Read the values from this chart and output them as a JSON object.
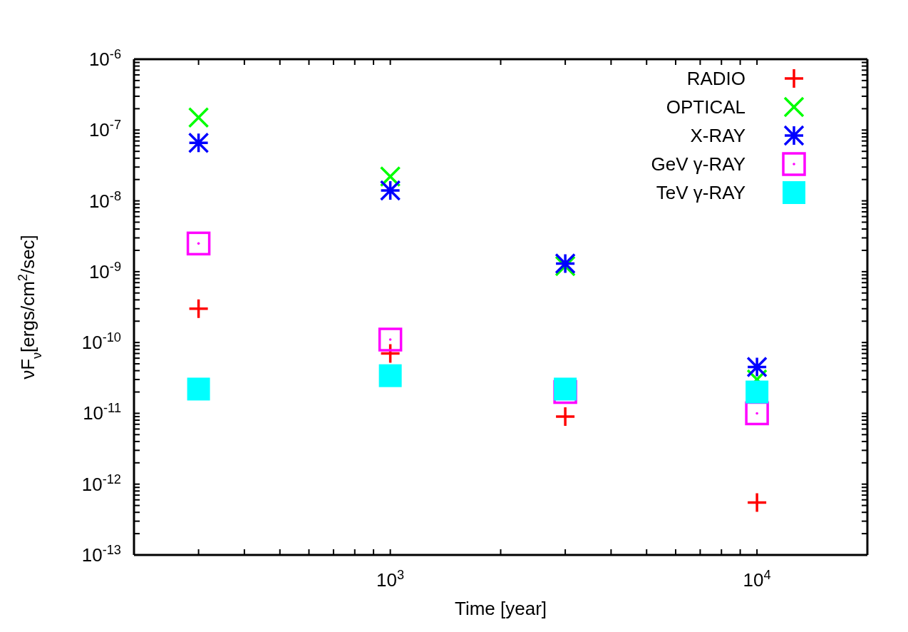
{
  "chart_data": {
    "type": "scatter",
    "xlabel": "Time [year]",
    "ylabel": "νF$_{ν}$[ergs/cm$^{2}$/sec]",
    "x": [
      300,
      1000,
      3000,
      10000
    ],
    "series": [
      {
        "name": "RADIO",
        "color": "#ff0000",
        "values": [
          3e-10,
          7e-11,
          9e-12,
          5.5e-13
        ]
      },
      {
        "name": "OPTICAL",
        "color": "#00ff00",
        "values": [
          1.5e-07,
          2.2e-08,
          1.2e-09,
          3e-11
        ]
      },
      {
        "name": "X-RAY",
        "color": "#0000ff",
        "values": [
          6.6e-08,
          1.4e-08,
          1.3e-09,
          4.5e-11
        ]
      },
      {
        "name": "GeV γ-RAY",
        "color": "#ff00ff",
        "values": [
          2.5e-09,
          1.1e-10,
          2e-11,
          1e-11
        ]
      },
      {
        "name": "TeV γ-RAY",
        "color": "#00ffff",
        "values": [
          2.2e-11,
          3.4e-11,
          2.2e-11,
          2e-11
        ]
      }
    ],
    "log": "xy",
    "xlim": [
      200,
      20000
    ],
    "ylim": [
      1e-13,
      1e-06
    ],
    "xticks": [
      {
        "value": 200,
        "label": null
      },
      {
        "value": 300,
        "label": null
      },
      {
        "value": 400,
        "label": null
      },
      {
        "value": 500,
        "label": null
      },
      {
        "value": 600,
        "label": null
      },
      {
        "value": 700,
        "label": null
      },
      {
        "value": 800,
        "label": null
      },
      {
        "value": 900,
        "label": null
      },
      {
        "value": 1000,
        "label": "10$^{3}$"
      },
      {
        "value": 2000,
        "label": null
      },
      {
        "value": 3000,
        "label": null
      },
      {
        "value": 4000,
        "label": null
      },
      {
        "value": 5000,
        "label": null
      },
      {
        "value": 6000,
        "label": null
      },
      {
        "value": 7000,
        "label": null
      },
      {
        "value": 8000,
        "label": null
      },
      {
        "value": 9000,
        "label": null
      },
      {
        "value": 10000,
        "label": "10$^{4}$"
      },
      {
        "value": 20000,
        "label": null
      }
    ],
    "yticks": [
      {
        "value": 1e-13,
        "label": "10$^{-13}$"
      },
      {
        "value": 2e-13,
        "label": null
      },
      {
        "value": 3e-13,
        "label": null
      },
      {
        "value": 4e-13,
        "label": null
      },
      {
        "value": 5e-13,
        "label": null
      },
      {
        "value": 6e-13,
        "label": null
      },
      {
        "value": 7e-13,
        "label": null
      },
      {
        "value": 8e-13,
        "label": null
      },
      {
        "value": 9e-13,
        "label": null
      },
      {
        "value": 1e-12,
        "label": "10$^{-12}$"
      },
      {
        "value": 2e-12,
        "label": null
      },
      {
        "value": 3e-12,
        "label": null
      },
      {
        "value": 4e-12,
        "label": null
      },
      {
        "value": 5e-12,
        "label": null
      },
      {
        "value": 6e-12,
        "label": null
      },
      {
        "value": 7e-12,
        "label": null
      },
      {
        "value": 8e-12,
        "label": null
      },
      {
        "value": 9e-12,
        "label": null
      },
      {
        "value": 1e-11,
        "label": "10$^{-11}$"
      },
      {
        "value": 2e-11,
        "label": null
      },
      {
        "value": 3e-11,
        "label": null
      },
      {
        "value": 4e-11,
        "label": null
      },
      {
        "value": 5e-11,
        "label": null
      },
      {
        "value": 6e-11,
        "label": null
      },
      {
        "value": 7e-11,
        "label": null
      },
      {
        "value": 8e-11,
        "label": null
      },
      {
        "value": 9e-11,
        "label": null
      },
      {
        "value": 1e-10,
        "label": "10$^{-10}$"
      },
      {
        "value": 2e-10,
        "label": null
      },
      {
        "value": 3e-10,
        "label": null
      },
      {
        "value": 4e-10,
        "label": null
      },
      {
        "value": 5e-10,
        "label": null
      },
      {
        "value": 6e-10,
        "label": null
      },
      {
        "value": 7e-10,
        "label": null
      },
      {
        "value": 8e-10,
        "label": null
      },
      {
        "value": 9e-10,
        "label": null
      },
      {
        "value": 1e-09,
        "label": "10$^{-9}$"
      },
      {
        "value": 2e-09,
        "label": null
      },
      {
        "value": 3e-09,
        "label": null
      },
      {
        "value": 4e-09,
        "label": null
      },
      {
        "value": 5e-09,
        "label": null
      },
      {
        "value": 6e-09,
        "label": null
      },
      {
        "value": 7e-09,
        "label": null
      },
      {
        "value": 8e-09,
        "label": null
      },
      {
        "value": 9e-09,
        "label": null
      },
      {
        "value": 1e-08,
        "label": "10$^{-8}$"
      },
      {
        "value": 2e-08,
        "label": null
      },
      {
        "value": 3e-08,
        "label": null
      },
      {
        "value": 4e-08,
        "label": null
      },
      {
        "value": 5e-08,
        "label": null
      },
      {
        "value": 6e-08,
        "label": null
      },
      {
        "value": 7e-08,
        "label": null
      },
      {
        "value": 8e-08,
        "label": null
      },
      {
        "value": 9e-08,
        "label": null
      },
      {
        "value": 1e-07,
        "label": "10$^{-7}$"
      },
      {
        "value": 2e-07,
        "label": null
      },
      {
        "value": 3e-07,
        "label": null
      },
      {
        "value": 4e-07,
        "label": null
      },
      {
        "value": 5e-07,
        "label": null
      },
      {
        "value": 6e-07,
        "label": null
      },
      {
        "value": 7e-07,
        "label": null
      },
      {
        "value": 8e-07,
        "label": null
      },
      {
        "value": 9e-07,
        "label": null
      },
      {
        "value": 1e-06,
        "label": "10$^{-6}$"
      }
    ],
    "grid": false,
    "legend": "top right"
  }
}
